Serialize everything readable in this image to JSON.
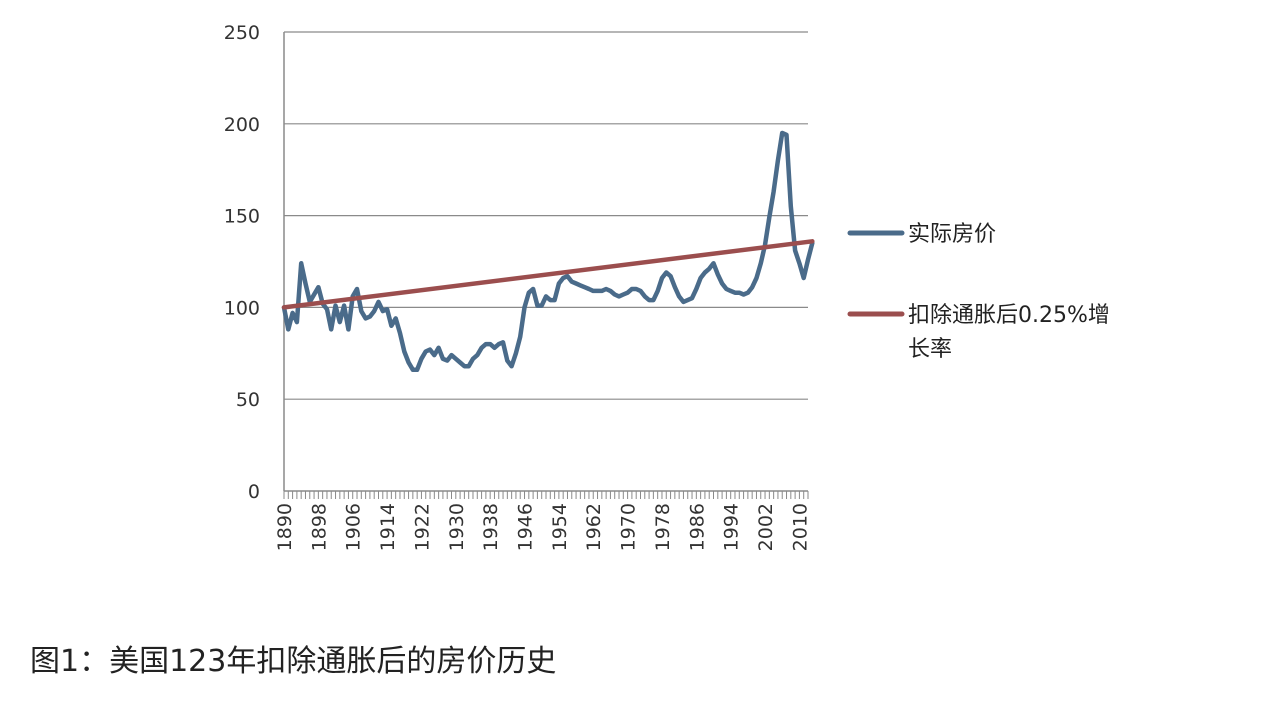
{
  "caption": "图1：美国123年扣除通胀后的房价历史",
  "chart_data": {
    "type": "line",
    "title": "",
    "xlabel": "",
    "ylabel": "",
    "ylim": [
      0,
      250
    ],
    "xlim": [
      1890,
      2012
    ],
    "y_ticks": [
      "0",
      "50",
      "100",
      "150",
      "200",
      "250"
    ],
    "x_ticks": [
      "1890",
      "1898",
      "1906",
      "1914",
      "1922",
      "1930",
      "1938",
      "1946",
      "1954",
      "1962",
      "1970",
      "1978",
      "1986",
      "1994",
      "2002",
      "2010"
    ],
    "grid": true,
    "legend_position": "right",
    "legend": [
      "实际房价",
      "扣除通胀后0.25%增长率"
    ],
    "series": [
      {
        "name": "实际房价",
        "color": "#4a6b8a",
        "points": [
          [
            1890,
            100
          ],
          [
            1891,
            88
          ],
          [
            1892,
            97
          ],
          [
            1893,
            92
          ],
          [
            1894,
            124
          ],
          [
            1895,
            113
          ],
          [
            1896,
            103
          ],
          [
            1897,
            107
          ],
          [
            1898,
            111
          ],
          [
            1899,
            102
          ],
          [
            1900,
            99
          ],
          [
            1901,
            88
          ],
          [
            1902,
            101
          ],
          [
            1903,
            92
          ],
          [
            1904,
            101
          ],
          [
            1905,
            88
          ],
          [
            1906,
            106
          ],
          [
            1907,
            110
          ],
          [
            1908,
            98
          ],
          [
            1909,
            94
          ],
          [
            1910,
            95
          ],
          [
            1911,
            98
          ],
          [
            1912,
            103
          ],
          [
            1913,
            98
          ],
          [
            1914,
            99
          ],
          [
            1915,
            90
          ],
          [
            1916,
            94
          ],
          [
            1917,
            86
          ],
          [
            1918,
            76
          ],
          [
            1919,
            70
          ],
          [
            1920,
            66
          ],
          [
            1921,
            66
          ],
          [
            1922,
            72
          ],
          [
            1923,
            76
          ],
          [
            1924,
            77
          ],
          [
            1925,
            74
          ],
          [
            1926,
            78
          ],
          [
            1927,
            72
          ],
          [
            1928,
            71
          ],
          [
            1929,
            74
          ],
          [
            1930,
            72
          ],
          [
            1931,
            70
          ],
          [
            1932,
            68
          ],
          [
            1933,
            68
          ],
          [
            1934,
            72
          ],
          [
            1935,
            74
          ],
          [
            1936,
            78
          ],
          [
            1937,
            80
          ],
          [
            1938,
            80
          ],
          [
            1939,
            78
          ],
          [
            1940,
            80
          ],
          [
            1941,
            81
          ],
          [
            1942,
            71
          ],
          [
            1943,
            68
          ],
          [
            1944,
            75
          ],
          [
            1945,
            84
          ],
          [
            1946,
            100
          ],
          [
            1947,
            108
          ],
          [
            1948,
            110
          ],
          [
            1949,
            101
          ],
          [
            1950,
            101
          ],
          [
            1951,
            106
          ],
          [
            1952,
            104
          ],
          [
            1953,
            104
          ],
          [
            1954,
            113
          ],
          [
            1955,
            116
          ],
          [
            1956,
            117
          ],
          [
            1957,
            114
          ],
          [
            1958,
            113
          ],
          [
            1959,
            112
          ],
          [
            1960,
            111
          ],
          [
            1961,
            110
          ],
          [
            1962,
            109
          ],
          [
            1963,
            109
          ],
          [
            1964,
            109
          ],
          [
            1965,
            110
          ],
          [
            1966,
            109
          ],
          [
            1967,
            107
          ],
          [
            1968,
            106
          ],
          [
            1969,
            107
          ],
          [
            1970,
            108
          ],
          [
            1971,
            110
          ],
          [
            1972,
            110
          ],
          [
            1973,
            109
          ],
          [
            1974,
            106
          ],
          [
            1975,
            104
          ],
          [
            1976,
            104
          ],
          [
            1977,
            109
          ],
          [
            1978,
            116
          ],
          [
            1979,
            119
          ],
          [
            1980,
            117
          ],
          [
            1981,
            111
          ],
          [
            1982,
            106
          ],
          [
            1983,
            103
          ],
          [
            1984,
            104
          ],
          [
            1985,
            105
          ],
          [
            1986,
            110
          ],
          [
            1987,
            116
          ],
          [
            1988,
            119
          ],
          [
            1989,
            121
          ],
          [
            1990,
            124
          ],
          [
            1991,
            118
          ],
          [
            1992,
            113
          ],
          [
            1993,
            110
          ],
          [
            1994,
            109
          ],
          [
            1995,
            108
          ],
          [
            1996,
            108
          ],
          [
            1997,
            107
          ],
          [
            1998,
            108
          ],
          [
            1999,
            111
          ],
          [
            2000,
            116
          ],
          [
            2001,
            124
          ],
          [
            2002,
            134
          ],
          [
            2003,
            149
          ],
          [
            2004,
            163
          ],
          [
            2005,
            180
          ],
          [
            2006,
            195
          ],
          [
            2007,
            194
          ],
          [
            2008,
            155
          ],
          [
            2009,
            131
          ],
          [
            2010,
            124
          ],
          [
            2011,
            116
          ],
          [
            2012,
            126
          ],
          [
            2013,
            135
          ]
        ]
      },
      {
        "name": "扣除通胀后0.25%增长率",
        "color": "#9b4e4e",
        "points": [
          [
            1890,
            100
          ],
          [
            2013,
            136
          ]
        ]
      }
    ]
  }
}
